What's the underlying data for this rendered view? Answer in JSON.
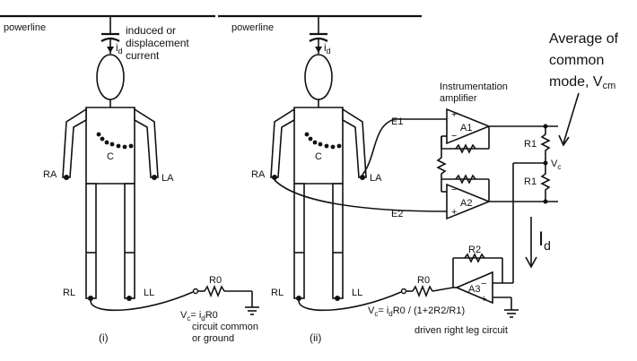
{
  "panel_i": {
    "powerline": "powerline",
    "current_symbol": "i",
    "current_sub": "d",
    "induced_line1": "induced or",
    "induced_line2": "displacement",
    "induced_line3": "current",
    "label_c": "C",
    "label_ra": "RA",
    "label_la": "LA",
    "label_rl": "RL",
    "label_ll": "LL",
    "label_r0": "R0",
    "eq_vc": "V",
    "eq_vc_sub": "c",
    "eq_rest": "= i",
    "eq_i_sub": "d",
    "eq_r0": "R0",
    "ground_line1": "circuit common",
    "ground_line2": "or ground",
    "panel_label": "(i)"
  },
  "panel_ii": {
    "powerline": "powerline",
    "current_symbol": "i",
    "current_sub": "d",
    "label_c": "C",
    "label_ra": "RA",
    "label_la": "LA",
    "label_rl": "RL",
    "label_ll": "LL",
    "label_r0": "R0",
    "label_e1": "E1",
    "label_e2": "E2",
    "inamp_line1": "Instrumentation",
    "inamp_line2": "amplifier",
    "label_a1": "A1",
    "label_a2": "A2",
    "label_a3": "A3",
    "label_r1_top": "R1",
    "label_r1_bottom": "R1",
    "label_r2": "R2",
    "label_vc": "V",
    "label_vc_sub": "c",
    "plus": "+",
    "minus": "−",
    "eq_vc": "V",
    "eq_vc_sub": "c",
    "eq_rest": "= i",
    "eq_i_sub": "d",
    "eq_tail": "R0 / (1+2R2/R1)",
    "drl_label": "driven right leg circuit",
    "panel_label": "(ii)"
  },
  "annotation": {
    "avg_line1": "Average of",
    "avg_line2": "common",
    "avg_line3": "mode, V",
    "avg_sub": "cm",
    "id_main": "I",
    "id_sub": "d"
  }
}
